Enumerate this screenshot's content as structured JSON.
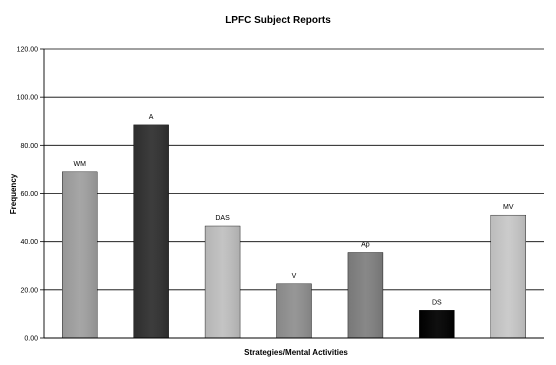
{
  "chart_data": {
    "type": "bar",
    "title": "LPFC Subject Reports",
    "xlabel": "Strategies/Mental Activities",
    "ylabel": "Frequency",
    "ylim": [
      0,
      120
    ],
    "yticks": [
      "0.00",
      "20.00",
      "40.00",
      "60.00",
      "80.00",
      "100.00",
      "120.00"
    ],
    "grid": true,
    "legend": "none",
    "categories": [
      "WM",
      "A",
      "DAS",
      "V",
      "Ap",
      "DS",
      "MV"
    ],
    "values": [
      69,
      88.5,
      46.5,
      22.5,
      35.5,
      11.5,
      51
    ],
    "colors": [
      "#a0a0a0",
      "#303030",
      "#c0c0c0",
      "#909090",
      "#808080",
      "#000000",
      "#c8c8c8"
    ]
  }
}
